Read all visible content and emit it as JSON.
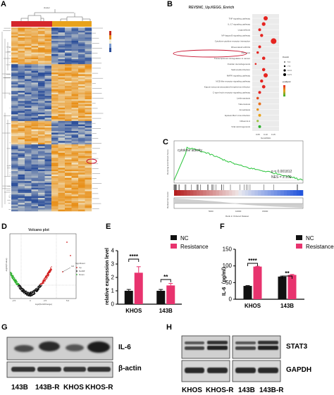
{
  "panels": {
    "a": "A",
    "b": "B",
    "c": "C",
    "d": "D",
    "e": "E",
    "f": "F",
    "g": "G",
    "h": "H"
  },
  "colors": {
    "heat_low": "#2c4f9a",
    "heat_mid": "#f2efd9",
    "heat_high": "#e8901a",
    "nc": "#111111",
    "resistance": "#e8336e",
    "gsea_line": "#29c43a",
    "volcano_up": "#d11f1f",
    "volcano_down": "#2fb22f",
    "volcano_ns": "#111111"
  },
  "heatmap": {
    "title": "cluster",
    "highlight_row_label": "CXCL"
  },
  "kegg": {
    "title": "REVSNC_Up.KEGG_Enrich",
    "pathways": [
      "TNF signaling pathway",
      "IL-17 signaling pathway",
      "Legionellosis",
      "NF-kappa B signaling pathway",
      "Cytokine-cytokine receptor interaction",
      "Rheumatoid arthritis",
      "Pertussis",
      "Transcriptional misregulation in cancer",
      "Ovarian steroidogenesis",
      "Salmonella infection",
      "MAPK signaling pathway",
      "NOD-like receptor signaling pathway",
      "Kaposi sarcoma-associated herpesvirus infection",
      "C-type lectin receptor signaling pathway",
      "Leishmaniasis",
      "Tuberculosis",
      "Amoebiasis",
      "Epstein-Barr virus infection",
      "Influenza A",
      "Viral carcinogenesis"
    ],
    "gene_ratio": [
      0.08,
      0.07,
      0.05,
      0.06,
      0.12,
      0.05,
      0.04,
      0.07,
      0.03,
      0.07,
      0.08,
      0.06,
      0.07,
      0.05,
      0.04,
      0.05,
      0.04,
      0.05,
      0.04,
      0.05
    ],
    "xlabel": "GeneRatio",
    "xticks": [
      "0.05",
      "0.10",
      "0.15"
    ],
    "count_label": "Count",
    "count_values": [
      "5.0",
      "7.5",
      "10.0",
      "12.5"
    ],
    "padj_label": "p.adjust"
  },
  "gsea": {
    "title": "cytokine activity",
    "ylabel_top": "Running Enrichment Score",
    "ylabel_bottom": "Ranked list metric",
    "xlabel": "Rank in Ordered Dataset",
    "p_text": "p = 0.001812",
    "nes_text": "NES = 2.109",
    "xticks": [
      "5000",
      "10000",
      "15000"
    ]
  },
  "volcano": {
    "title": "Volcano plot",
    "xlabel": "log2(FoldChange)",
    "ylabel": "-log10(Pvalue)",
    "legend_title": "Significant",
    "legend_items": [
      "Up",
      "NoDiff",
      "Down"
    ],
    "annotation": "IL6",
    "xticks": [
      "-2.5",
      "0",
      "2.5",
      "5.0"
    ]
  },
  "chart_data": [
    {
      "type": "bar",
      "ylabel": "relative expression level",
      "categories": [
        "KHOS",
        "143B"
      ],
      "series": [
        {
          "name": "NC",
          "values": [
            1.0,
            1.0
          ],
          "errors": [
            0.1,
            0.1
          ]
        },
        {
          "name": "Resistance",
          "values": [
            2.35,
            1.4
          ],
          "errors": [
            0.45,
            0.15
          ]
        }
      ],
      "ylim": [
        0,
        4
      ],
      "yticks": [
        "0",
        "1",
        "2",
        "3",
        "4"
      ],
      "significance": [
        "****",
        "**"
      ]
    },
    {
      "type": "bar",
      "ylabel": "IL-6（pg/ml）",
      "categories": [
        "KHOS",
        "143B"
      ],
      "series": [
        {
          "name": "NC",
          "values": [
            40,
            68
          ],
          "errors": [
            1,
            1.5
          ]
        },
        {
          "name": "Resistance",
          "values": [
            98,
            73
          ],
          "errors": [
            1,
            1.5
          ]
        }
      ],
      "ylim": [
        0,
        150
      ],
      "yticks": [
        "0",
        "50",
        "100",
        "150"
      ],
      "significance": [
        "****",
        "**"
      ]
    }
  ],
  "blot_g": {
    "labels": [
      "IL-6",
      "β-actin"
    ],
    "lanes": [
      "143B",
      "143B-R",
      "KHOS",
      "KHOS-R"
    ]
  },
  "blot_h": {
    "labels": [
      "STAT3",
      "GAPDH"
    ],
    "lanes": [
      "KHOS",
      "KHOS-R",
      "143B",
      "143B-R"
    ]
  }
}
